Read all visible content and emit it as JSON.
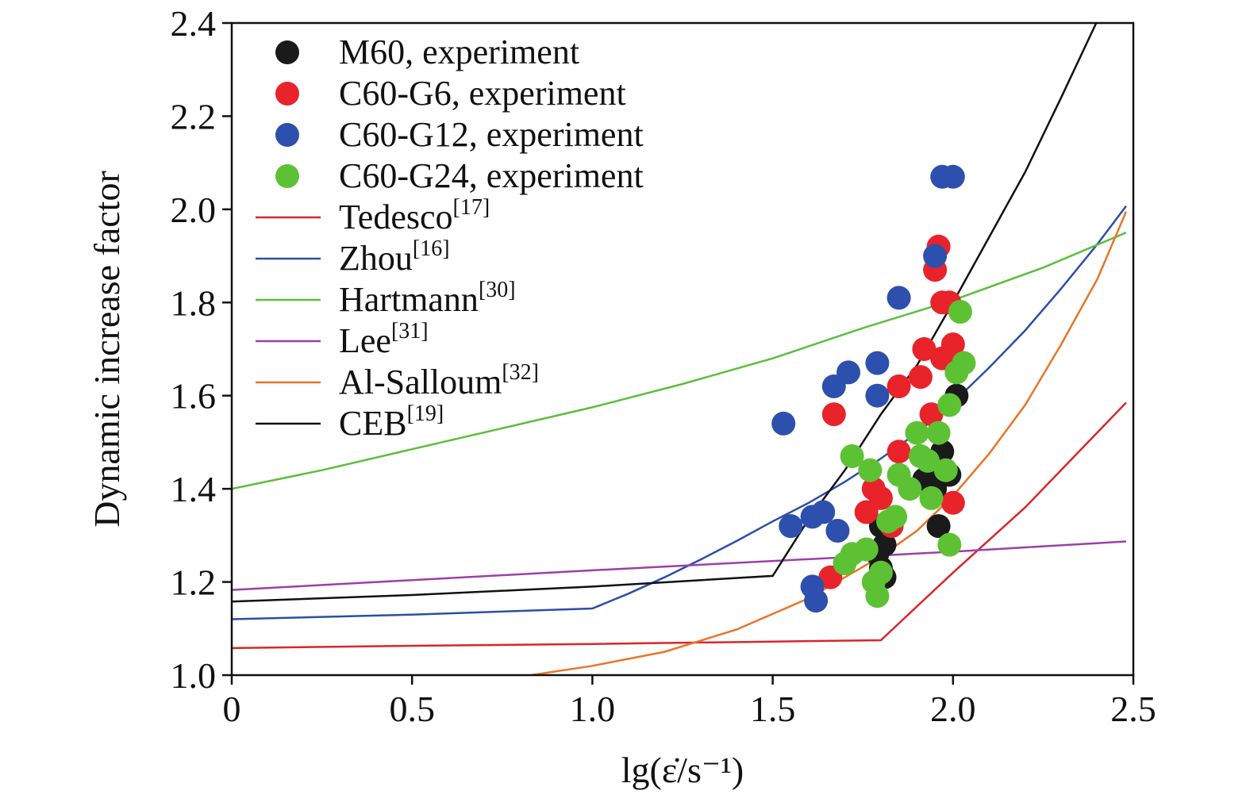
{
  "chart_data": {
    "type": "scatter",
    "xlabel": "lg(ε̇/s⁻¹)",
    "ylabel": "Dynamic increase factor",
    "xlim": [
      0,
      2.5
    ],
    "ylim": [
      1.0,
      2.4
    ],
    "xticks": [
      "0",
      "0.5",
      "1.0",
      "1.5",
      "2.0",
      "2.5"
    ],
    "yticks": [
      "1.0",
      "1.2",
      "1.4",
      "1.6",
      "1.8",
      "2.0",
      "2.2",
      "2.4"
    ],
    "legend_position": "top-left",
    "grid": false,
    "scatter_series": [
      {
        "name": "M60, experiment",
        "color": "#1a1a1a",
        "points": [
          [
            1.79,
            1.26
          ],
          [
            1.8,
            1.32
          ],
          [
            1.81,
            1.28
          ],
          [
            1.8,
            1.23
          ],
          [
            1.81,
            1.21
          ],
          [
            1.92,
            1.42
          ],
          [
            1.95,
            1.44
          ],
          [
            1.97,
            1.48
          ],
          [
            1.95,
            1.4
          ],
          [
            1.96,
            1.32
          ],
          [
            1.99,
            1.43
          ],
          [
            2.01,
            1.6
          ]
        ]
      },
      {
        "name": "C60-G6, experiment",
        "color": "#e8232a",
        "points": [
          [
            1.66,
            1.21
          ],
          [
            1.67,
            1.56
          ],
          [
            1.76,
            1.35
          ],
          [
            1.78,
            1.4
          ],
          [
            1.8,
            1.38
          ],
          [
            1.83,
            1.32
          ],
          [
            1.85,
            1.48
          ],
          [
            1.85,
            1.62
          ],
          [
            1.91,
            1.64
          ],
          [
            1.92,
            1.7
          ],
          [
            1.94,
            1.56
          ],
          [
            1.95,
            1.87
          ],
          [
            1.96,
            1.92
          ],
          [
            1.97,
            1.8
          ],
          [
            1.97,
            1.68
          ],
          [
            1.99,
            1.8
          ],
          [
            2.0,
            1.71
          ],
          [
            2.0,
            1.37
          ]
        ]
      },
      {
        "name": "C60-G12, experiment",
        "color": "#2d4fad",
        "points": [
          [
            1.53,
            1.54
          ],
          [
            1.55,
            1.32
          ],
          [
            1.61,
            1.19
          ],
          [
            1.62,
            1.16
          ],
          [
            1.61,
            1.34
          ],
          [
            1.64,
            1.35
          ],
          [
            1.67,
            1.62
          ],
          [
            1.68,
            1.31
          ],
          [
            1.71,
            1.65
          ],
          [
            1.79,
            1.67
          ],
          [
            1.79,
            1.6
          ],
          [
            1.85,
            1.81
          ],
          [
            1.95,
            1.9
          ],
          [
            1.97,
            2.07
          ],
          [
            2.0,
            2.07
          ]
        ]
      },
      {
        "name": "C60-G24, experiment",
        "color": "#5dc134",
        "points": [
          [
            1.7,
            1.24
          ],
          [
            1.72,
            1.26
          ],
          [
            1.72,
            1.47
          ],
          [
            1.76,
            1.27
          ],
          [
            1.77,
            1.44
          ],
          [
            1.78,
            1.2
          ],
          [
            1.79,
            1.17
          ],
          [
            1.8,
            1.22
          ],
          [
            1.82,
            1.33
          ],
          [
            1.84,
            1.34
          ],
          [
            1.85,
            1.43
          ],
          [
            1.88,
            1.4
          ],
          [
            1.9,
            1.52
          ],
          [
            1.91,
            1.47
          ],
          [
            1.93,
            1.46
          ],
          [
            1.94,
            1.38
          ],
          [
            1.96,
            1.52
          ],
          [
            1.98,
            1.44
          ],
          [
            1.99,
            1.58
          ],
          [
            1.99,
            1.28
          ],
          [
            2.01,
            1.65
          ],
          [
            2.02,
            1.78
          ],
          [
            2.03,
            1.67
          ]
        ]
      }
    ],
    "line_series": [
      {
        "name": "Tedesco",
        "ref": "[17]",
        "color": "#d9262b",
        "points": [
          [
            0,
            1.058
          ],
          [
            0.5,
            1.063
          ],
          [
            1.0,
            1.067
          ],
          [
            1.5,
            1.072
          ],
          [
            1.8,
            1.075
          ],
          [
            2.0,
            1.22
          ],
          [
            2.2,
            1.36
          ],
          [
            2.48,
            1.585
          ]
        ]
      },
      {
        "name": "Zhou",
        "ref": "[16]",
        "color": "#2b4ea8",
        "points": [
          [
            0,
            1.12
          ],
          [
            0.5,
            1.13
          ],
          [
            1.0,
            1.143
          ],
          [
            1.1,
            1.175
          ],
          [
            1.2,
            1.21
          ],
          [
            1.3,
            1.248
          ],
          [
            1.4,
            1.288
          ],
          [
            1.5,
            1.33
          ],
          [
            1.6,
            1.37
          ],
          [
            1.7,
            1.415
          ],
          [
            1.8,
            1.465
          ],
          [
            1.9,
            1.52
          ],
          [
            2.0,
            1.585
          ],
          [
            2.1,
            1.66
          ],
          [
            2.2,
            1.74
          ],
          [
            2.3,
            1.83
          ],
          [
            2.4,
            1.925
          ],
          [
            2.48,
            2.007
          ]
        ]
      },
      {
        "name": "Hartmann",
        "ref": "[30]",
        "color": "#5bbf3a",
        "points": [
          [
            0,
            1.4
          ],
          [
            0.25,
            1.44
          ],
          [
            0.5,
            1.485
          ],
          [
            0.75,
            1.53
          ],
          [
            1.0,
            1.575
          ],
          [
            1.25,
            1.625
          ],
          [
            1.5,
            1.68
          ],
          [
            1.75,
            1.745
          ],
          [
            2.0,
            1.805
          ],
          [
            2.25,
            1.875
          ],
          [
            2.48,
            1.95
          ]
        ]
      },
      {
        "name": "Lee",
        "ref": "[31]",
        "color": "#9c3fa8",
        "points": [
          [
            0,
            1.183
          ],
          [
            1.0,
            1.225
          ],
          [
            2.0,
            1.265
          ],
          [
            2.48,
            1.287
          ]
        ]
      },
      {
        "name": "Al-Salloum",
        "ref": "[32]",
        "color": "#e87528",
        "points": [
          [
            0.83,
            1.0
          ],
          [
            1.0,
            1.02
          ],
          [
            1.2,
            1.05
          ],
          [
            1.4,
            1.098
          ],
          [
            1.6,
            1.165
          ],
          [
            1.8,
            1.255
          ],
          [
            1.9,
            1.31
          ],
          [
            2.0,
            1.385
          ],
          [
            2.1,
            1.475
          ],
          [
            2.2,
            1.58
          ],
          [
            2.3,
            1.71
          ],
          [
            2.4,
            1.85
          ],
          [
            2.48,
            1.995
          ]
        ]
      },
      {
        "name": "CEB",
        "ref": "[19]",
        "color": "#111111",
        "points": [
          [
            0,
            1.158
          ],
          [
            0.5,
            1.172
          ],
          [
            1.0,
            1.19
          ],
          [
            1.5,
            1.213
          ],
          [
            1.6,
            1.335
          ],
          [
            1.7,
            1.44
          ],
          [
            1.8,
            1.56
          ],
          [
            1.9,
            1.665
          ],
          [
            2.0,
            1.8
          ],
          [
            2.1,
            1.94
          ],
          [
            2.2,
            2.08
          ],
          [
            2.3,
            2.24
          ],
          [
            2.4,
            2.405
          ]
        ]
      }
    ]
  }
}
